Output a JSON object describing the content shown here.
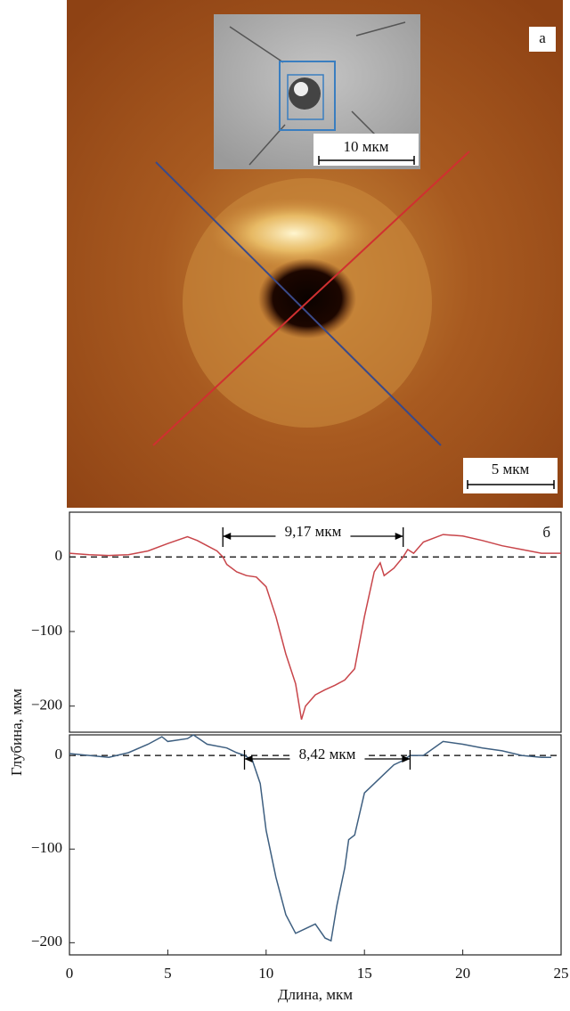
{
  "image": {
    "label": "а",
    "inset_scale_bar": "10 мкм",
    "scale_bar": "5 мкм"
  },
  "chart_data": [
    {
      "type": "line",
      "panel_label": "б",
      "x": [
        0,
        1,
        2,
        3,
        4,
        5,
        6,
        6.5,
        7,
        7.5,
        7.8,
        8,
        8.5,
        9,
        9.5,
        10,
        10.5,
        11,
        11.5,
        11.8,
        12,
        12.5,
        13,
        13.5,
        14,
        14.5,
        15,
        15.5,
        15.8,
        16,
        16.5,
        16.97,
        17.2,
        17.5,
        18,
        19,
        20,
        21,
        22,
        23,
        24,
        25
      ],
      "values": [
        5,
        3,
        2,
        3,
        8,
        18,
        27,
        22,
        15,
        8,
        0,
        -10,
        -20,
        -25,
        -27,
        -40,
        -80,
        -130,
        -170,
        -218,
        -200,
        -185,
        -178,
        -172,
        -165,
        -150,
        -80,
        -20,
        -8,
        -25,
        -15,
        0,
        10,
        5,
        20,
        30,
        28,
        22,
        15,
        10,
        5,
        5
      ],
      "color": "#c8454a",
      "xlim": [
        0,
        25
      ],
      "ylim": [
        -235,
        60
      ],
      "yticks": [
        {
          "value": -200,
          "label": "−200"
        },
        {
          "value": -100,
          "label": "−100"
        },
        0
      ],
      "annotations": [
        {
          "text": "9,17 мкм",
          "x": [
            7.8,
            16.97
          ]
        }
      ]
    },
    {
      "type": "line",
      "x": [
        0,
        1,
        2,
        3,
        4,
        4.7,
        5,
        6,
        6.3,
        7,
        8,
        8.5,
        8.9,
        9.3,
        9.7,
        10,
        10.5,
        11,
        11.5,
        12,
        12.5,
        13,
        13.3,
        13.6,
        14,
        14.2,
        14.5,
        15,
        15.5,
        16,
        16.5,
        17,
        17.32,
        18,
        19,
        20,
        21,
        22,
        23,
        24,
        24.5
      ],
      "values": [
        2,
        0,
        -2,
        3,
        12,
        20,
        15,
        18,
        22,
        12,
        8,
        3,
        0,
        -5,
        -30,
        -80,
        -130,
        -170,
        -190,
        -185,
        -180,
        -195,
        -198,
        -160,
        -120,
        -90,
        -85,
        -40,
        -30,
        -20,
        -10,
        -5,
        0,
        0,
        15,
        12,
        8,
        5,
        0,
        -2,
        -2
      ],
      "color": "#3e5f80",
      "xlim": [
        0,
        25
      ],
      "ylim": [
        -213,
        22
      ],
      "xticks": [
        0,
        5,
        10,
        15,
        20,
        25
      ],
      "yticks": [
        {
          "value": -200,
          "label": "−200"
        },
        {
          "value": -100,
          "label": "−100"
        },
        0
      ],
      "annotations": [
        {
          "text": "8,42 мкм",
          "x": [
            8.9,
            17.32
          ]
        }
      ],
      "x_label": "Длина, мкм",
      "y_label": "Глубина, мкм"
    }
  ]
}
